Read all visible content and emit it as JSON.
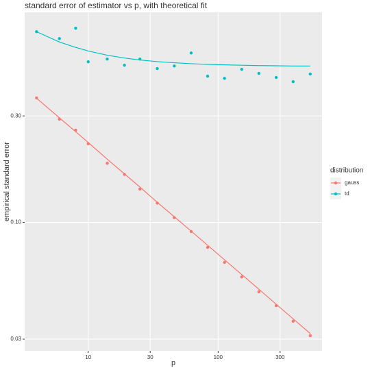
{
  "chart_data": {
    "type": "scatter",
    "title": "standard error of estimator vs p, with theoretical fit",
    "x_label": "p",
    "y_label": "empirical standard error",
    "legend_title": "distribution",
    "legend_position": "right",
    "x_log": true,
    "y_log": true,
    "grid": true,
    "x": [
      4,
      6,
      8,
      10,
      14,
      19,
      25,
      34,
      46,
      62,
      83,
      112,
      152,
      206,
      280,
      378,
      512
    ],
    "series": [
      {
        "name": "gauss",
        "color": "#F8766D",
        "values": [
          0.361,
          0.29,
          0.259,
          0.225,
          0.184,
          0.164,
          0.141,
          0.122,
          0.105,
          0.091,
          0.0773,
          0.0662,
          0.057,
          0.0489,
          0.0424,
          0.0361,
          0.0311
        ],
        "fit": [
          0.36,
          0.294,
          0.255,
          0.228,
          0.192,
          0.165,
          0.144,
          0.123,
          0.106,
          0.0914,
          0.079,
          0.068,
          0.0584,
          0.0502,
          0.043,
          0.037,
          0.0318
        ]
      },
      {
        "name": "td",
        "color": "#00BFC4",
        "values": [
          0.715,
          0.666,
          0.741,
          0.524,
          0.539,
          0.506,
          0.539,
          0.489,
          0.502,
          0.574,
          0.452,
          0.442,
          0.485,
          0.465,
          0.446,
          0.427,
          0.462
        ],
        "fit": [
          0.715,
          0.643,
          0.608,
          0.586,
          0.561,
          0.545,
          0.534,
          0.525,
          0.519,
          0.514,
          0.51,
          0.508,
          0.506,
          0.504,
          0.503,
          0.502,
          0.502
        ]
      }
    ],
    "xlim": [
      3.24,
      631
    ],
    "xticks": [
      10,
      30,
      100,
      300
    ],
    "ylim": [
      0.0266,
      0.873
    ],
    "yticks": [
      0.03,
      {
        "value": 0.1,
        "label": "0.10"
      },
      {
        "value": 0.3,
        "label": "0.30"
      }
    ]
  }
}
